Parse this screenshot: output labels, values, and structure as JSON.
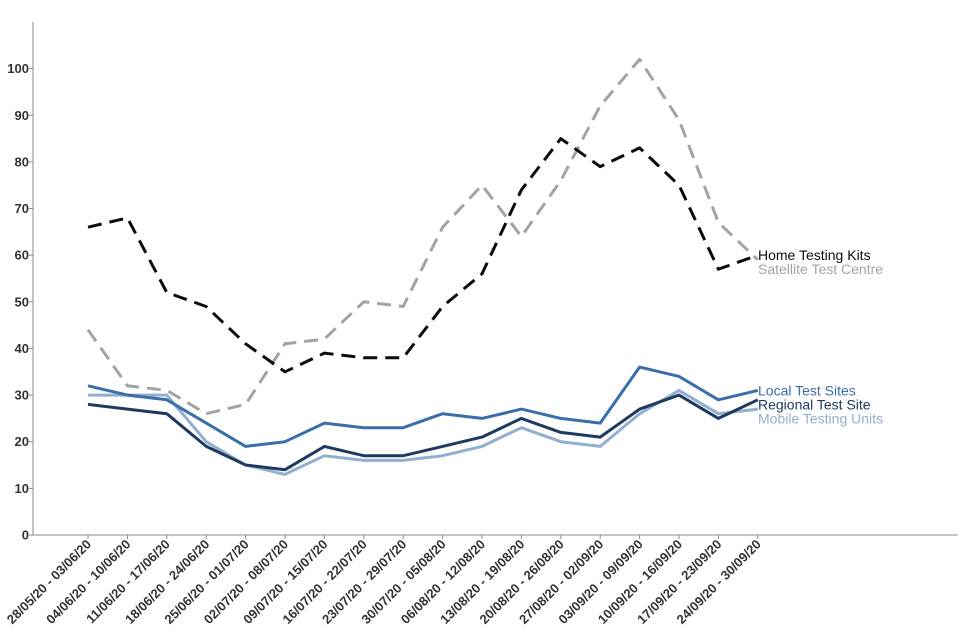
{
  "chart_data": {
    "type": "line",
    "title": "",
    "xlabel": "",
    "ylabel": "",
    "ylim": [
      0,
      110
    ],
    "yticks": [
      0,
      10,
      20,
      30,
      40,
      50,
      60,
      70,
      80,
      90,
      100
    ],
    "grid": false,
    "legend": "end-of-line labels",
    "categories": [
      "28/05/20 - 03/06/20",
      "04/06/20 - 10/06/20",
      "11/06/20 - 17/06/20",
      "18/06/20 - 24/06/20",
      "25/06/20 - 01/07/20",
      "02/07/20 - 08/07/20",
      "09/07/20 - 15/07/20",
      "16/07/20 - 22/07/20",
      "23/07/20 - 29/07/20",
      "30/07/20 - 05/08/20",
      "06/08/20 - 12/08/20",
      "13/08/20 - 19/08/20",
      "20/08/20 - 26/08/20",
      "27/08/20 - 02/09/20",
      "03/09/20 - 09/09/20",
      "10/09/20 - 16/09/20",
      "17/09/20 - 23/09/20",
      "24/09/20 - 30/09/20"
    ],
    "series": [
      {
        "name": "Satellite Test Centre",
        "color": "#a3a3a3",
        "dash": true,
        "values": [
          44,
          32,
          31,
          26,
          28,
          41,
          42,
          50,
          49,
          66,
          75,
          64,
          76,
          92,
          102,
          89,
          67,
          59
        ]
      },
      {
        "name": "Home Testing Kits",
        "color": "#0b0c0c",
        "dash": true,
        "values": [
          66,
          68,
          52,
          49,
          41,
          35,
          39,
          38,
          38,
          49,
          56,
          74,
          85,
          79,
          83,
          75,
          57,
          60
        ]
      },
      {
        "name": "Mobile Testing Units",
        "color": "#93afd0",
        "dash": false,
        "values": [
          30,
          30,
          30,
          20,
          15,
          13,
          17,
          16,
          16,
          17,
          19,
          23,
          20,
          19,
          26,
          31,
          26,
          27
        ]
      },
      {
        "name": "Regional Test Site",
        "color": "#1f3a60",
        "dash": false,
        "values": [
          28,
          27,
          26,
          19,
          15,
          14,
          19,
          17,
          17,
          19,
          21,
          25,
          22,
          21,
          27,
          30,
          25,
          29
        ]
      },
      {
        "name": "Local Test Sites",
        "color": "#3a6ea9",
        "dash": false,
        "values": [
          32,
          30,
          29,
          24,
          19,
          20,
          24,
          23,
          23,
          26,
          25,
          27,
          25,
          24,
          36,
          34,
          29,
          31
        ]
      }
    ]
  }
}
